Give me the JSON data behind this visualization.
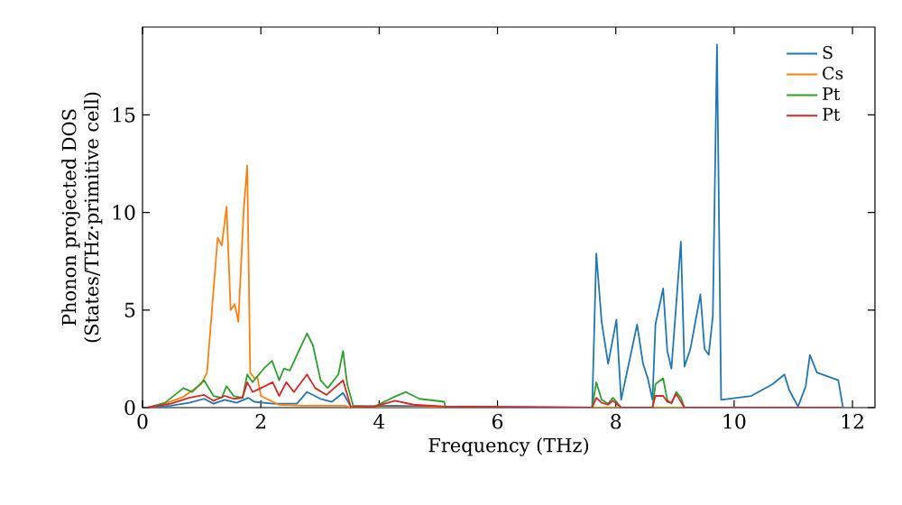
{
  "chart_data": {
    "type": "line",
    "xlabel": "Frequency (THz)",
    "ylabel": "Phonon projected DOS\n(States/THz·primitive cell)",
    "xlim": [
      0,
      12.38
    ],
    "ylim": [
      0,
      19.5
    ],
    "xticks": [
      0,
      2,
      4,
      6,
      8,
      10,
      12
    ],
    "yticks": [
      0,
      5,
      10,
      15
    ],
    "legend": "top right",
    "grid": false,
    "series": [
      {
        "name": "S",
        "color": "#1f77b4",
        "x": [
          0.08,
          0.48,
          0.79,
          1.04,
          1.2,
          1.39,
          1.59,
          1.79,
          1.89,
          2.2,
          2.61,
          2.78,
          3.01,
          3.2,
          3.39,
          3.52,
          4.22,
          5.12,
          7.6,
          7.67,
          7.76,
          7.87,
          8.01,
          8.09,
          8.36,
          8.46,
          8.54,
          8.62,
          8.67,
          8.8,
          8.87,
          8.94,
          9.1,
          9.16,
          9.26,
          9.43,
          9.5,
          9.57,
          9.64,
          9.71,
          9.78,
          10.29,
          10.65,
          10.85,
          10.93,
          11.08,
          11.21,
          11.28,
          11.4,
          11.76,
          11.84
        ],
        "values": [
          0,
          0.1,
          0.25,
          0.45,
          0.2,
          0.4,
          0.25,
          0.5,
          0.3,
          0.2,
          0.2,
          0.8,
          0.45,
          0.3,
          0.75,
          0.05,
          0.1,
          0.05,
          0,
          7.9,
          4.4,
          2.25,
          4.5,
          0.4,
          4.26,
          2.25,
          1.5,
          0.4,
          4.26,
          6.1,
          2.9,
          2.0,
          8.5,
          2.1,
          3.0,
          5.8,
          3.0,
          2.7,
          4.7,
          18.6,
          0.4,
          0.6,
          1.2,
          1.7,
          0.9,
          0.05,
          1.1,
          2.7,
          1.8,
          1.4,
          0
        ]
      },
      {
        "name": "Cs",
        "color": "#ff7f0e",
        "x": [
          0.08,
          0.28,
          0.69,
          0.99,
          1.09,
          1.27,
          1.34,
          1.42,
          1.49,
          1.56,
          1.62,
          1.71,
          1.77,
          1.82,
          1.89,
          1.94,
          2.0,
          2.3,
          2.71,
          3.42,
          3.52,
          11.84
        ],
        "values": [
          0,
          0.1,
          0.55,
          1.2,
          1.8,
          8.7,
          8.3,
          10.3,
          5.0,
          5.3,
          4.4,
          10.1,
          12.4,
          1.8,
          1.5,
          1.6,
          0.6,
          0.15,
          0.1,
          0.1,
          0,
          0
        ]
      },
      {
        "name": "Pt",
        "color": "#2ca02c",
        "x": [
          0.08,
          0.38,
          0.69,
          0.84,
          1.04,
          1.2,
          1.34,
          1.42,
          1.54,
          1.69,
          1.77,
          1.86,
          2.05,
          2.19,
          2.31,
          2.39,
          2.49,
          2.61,
          2.78,
          2.88,
          3.01,
          3.13,
          3.31,
          3.39,
          3.46,
          3.56,
          3.92,
          4.22,
          4.45,
          4.68,
          5.1,
          5.12,
          7.6,
          7.67,
          7.76,
          7.87,
          7.95,
          8.01,
          8.09,
          8.62,
          8.67,
          8.8,
          8.87,
          8.94,
          9.02,
          9.1,
          9.16,
          11.84
        ],
        "values": [
          0,
          0.25,
          1.0,
          0.8,
          1.4,
          0.6,
          0.5,
          1.1,
          0.6,
          0.5,
          1.7,
          1.3,
          2.0,
          2.4,
          1.4,
          2.0,
          1.9,
          2.7,
          3.8,
          3.2,
          1.4,
          1.0,
          1.7,
          2.9,
          1.2,
          0.1,
          0.05,
          0.5,
          0.8,
          0.45,
          0.3,
          0,
          0,
          1.3,
          0.4,
          0.2,
          0.5,
          0.3,
          0,
          0,
          1.2,
          1.5,
          0.4,
          0.2,
          0.8,
          0.5,
          0,
          0
        ]
      },
      {
        "name": "Pt",
        "color": "#d62728",
        "x": [
          0.08,
          0.48,
          0.79,
          1.04,
          1.2,
          1.39,
          1.54,
          1.69,
          1.77,
          1.86,
          2.0,
          2.2,
          2.31,
          2.43,
          2.56,
          2.78,
          2.92,
          3.11,
          3.39,
          3.52,
          3.92,
          4.27,
          4.58,
          5.12,
          7.6,
          7.67,
          7.76,
          7.87,
          7.95,
          8.01,
          8.09,
          8.62,
          8.67,
          8.8,
          8.87,
          8.94,
          9.02,
          9.1,
          9.16,
          11.84
        ],
        "values": [
          0,
          0.2,
          0.5,
          0.65,
          0.35,
          0.6,
          0.45,
          0.5,
          1.3,
          0.8,
          1.0,
          1.3,
          0.6,
          1.3,
          0.8,
          1.7,
          1.0,
          0.65,
          1.4,
          0.05,
          0.05,
          0.35,
          0.15,
          0.05,
          0,
          0.5,
          0.25,
          0.15,
          0.35,
          0.2,
          0,
          0,
          0.6,
          0.6,
          0.3,
          0.25,
          0.7,
          0.3,
          0,
          0
        ]
      }
    ]
  }
}
